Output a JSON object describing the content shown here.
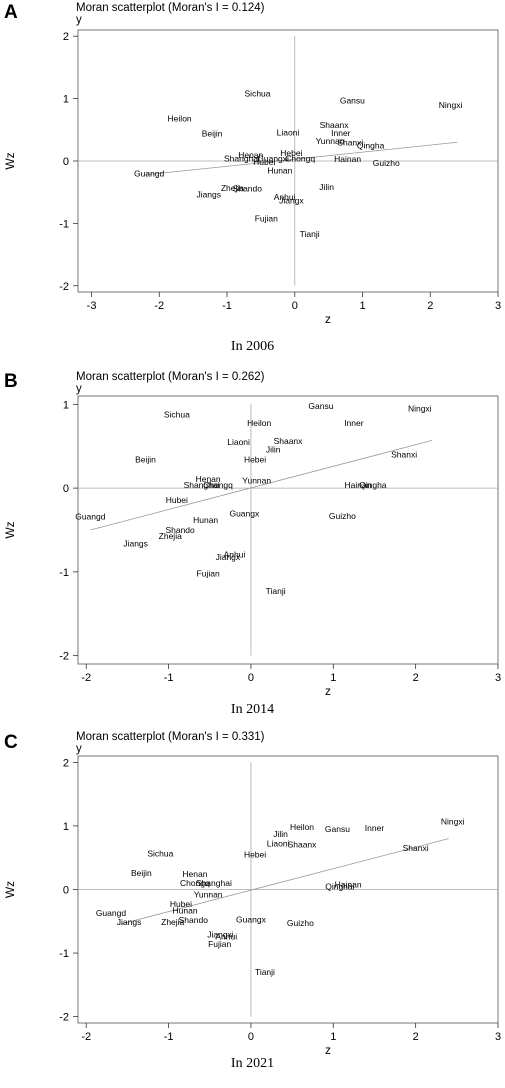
{
  "panels": [
    {
      "letter": "A",
      "title": "Moran scatterplot (Moran's I = 0.124)",
      "title_y": "y",
      "caption": "In 2006"
    },
    {
      "letter": "B",
      "title": "Moran scatterplot (Moran's I = 0.262)",
      "title_y": "y",
      "caption": "In 2014"
    },
    {
      "letter": "C",
      "title": "Moran scatterplot (Moran's I = 0.331)",
      "title_y": "y",
      "caption": "In 2021"
    }
  ],
  "chart_data": [
    {
      "type": "scatter",
      "title": "Moran scatterplot (Moran's I = 0.124)",
      "xlabel": "z",
      "ylabel": "Wz",
      "xlim": [
        -3.2,
        3.0
      ],
      "ylim": [
        -2.1,
        2.1
      ],
      "xticks": [
        -3,
        -2,
        -1,
        0,
        1,
        2,
        3
      ],
      "yticks": [
        -2,
        -1,
        0,
        1,
        2
      ],
      "fit_line": {
        "x": [
          -2.2,
          2.4
        ],
        "y": [
          -0.22,
          0.3
        ]
      },
      "points": [
        {
          "label": "Sichua",
          "x": -0.55,
          "y": 1.08
        },
        {
          "label": "Gansu",
          "x": 0.85,
          "y": 0.97
        },
        {
          "label": "Ningxi",
          "x": 2.3,
          "y": 0.9
        },
        {
          "label": "Heilon",
          "x": -1.7,
          "y": 0.68
        },
        {
          "label": "Shaanx",
          "x": 0.58,
          "y": 0.58
        },
        {
          "label": "Beijin",
          "x": -1.22,
          "y": 0.44
        },
        {
          "label": "Liaoni",
          "x": -0.1,
          "y": 0.46
        },
        {
          "label": "Inner",
          "x": 0.68,
          "y": 0.45
        },
        {
          "label": "Yunnan",
          "x": 0.52,
          "y": 0.32
        },
        {
          "label": "Shanxi",
          "x": 0.82,
          "y": 0.3
        },
        {
          "label": "Qingha",
          "x": 1.12,
          "y": 0.25
        },
        {
          "label": "Hebei",
          "x": -0.05,
          "y": 0.13
        },
        {
          "label": "Henan",
          "x": -0.65,
          "y": 0.1
        },
        {
          "label": "Shanghai",
          "x": -0.78,
          "y": 0.04
        },
        {
          "label": "Guangxi",
          "x": -0.32,
          "y": 0.04
        },
        {
          "label": "Chongq",
          "x": 0.08,
          "y": 0.04
        },
        {
          "label": "Hubei",
          "x": -0.45,
          "y": -0.02
        },
        {
          "label": "Hainan",
          "x": 0.78,
          "y": 0.03
        },
        {
          "label": "Guizho",
          "x": 1.35,
          "y": -0.03
        },
        {
          "label": "Hunan",
          "x": -0.22,
          "y": -0.15
        },
        {
          "label": "Guangd",
          "x": -2.15,
          "y": -0.2
        },
        {
          "label": "Zhejia",
          "x": -0.92,
          "y": -0.43
        },
        {
          "label": "Shando",
          "x": -0.7,
          "y": -0.44
        },
        {
          "label": "Jilin",
          "x": 0.47,
          "y": -0.42
        },
        {
          "label": "Jiangs",
          "x": -1.27,
          "y": -0.54
        },
        {
          "label": "Anhui",
          "x": -0.15,
          "y": -0.58
        },
        {
          "label": "Jiangx",
          "x": -0.05,
          "y": -0.63
        },
        {
          "label": "Fujian",
          "x": -0.42,
          "y": -0.92
        },
        {
          "label": "Tianji",
          "x": 0.22,
          "y": -1.17
        }
      ]
    },
    {
      "type": "scatter",
      "title": "Moran scatterplot (Moran's I = 0.262)",
      "xlabel": "z",
      "ylabel": "Wz",
      "xlim": [
        -2.1,
        3.0
      ],
      "ylim": [
        -2.1,
        1.1
      ],
      "xticks": [
        -2,
        -1,
        0,
        1,
        2,
        3
      ],
      "yticks": [
        -2,
        -1,
        0,
        1
      ],
      "fit_line": {
        "x": [
          -1.95,
          2.2
        ],
        "y": [
          -0.5,
          0.57
        ]
      },
      "points": [
        {
          "label": "Gansu",
          "x": 0.85,
          "y": 0.98
        },
        {
          "label": "Ningxi",
          "x": 2.05,
          "y": 0.95
        },
        {
          "label": "Sichua",
          "x": -0.9,
          "y": 0.88
        },
        {
          "label": "Heilon",
          "x": 0.1,
          "y": 0.78
        },
        {
          "label": "Inner",
          "x": 1.25,
          "y": 0.78
        },
        {
          "label": "Shaanx",
          "x": 0.45,
          "y": 0.56
        },
        {
          "label": "Liaoni",
          "x": -0.15,
          "y": 0.55
        },
        {
          "label": "Jilin",
          "x": 0.27,
          "y": 0.46
        },
        {
          "label": "Shanxi",
          "x": 1.86,
          "y": 0.4
        },
        {
          "label": "Beijin",
          "x": -1.28,
          "y": 0.34
        },
        {
          "label": "Hebei",
          "x": 0.05,
          "y": 0.34
        },
        {
          "label": "Henan",
          "x": -0.52,
          "y": 0.11
        },
        {
          "label": "Yunnan",
          "x": 0.07,
          "y": 0.09
        },
        {
          "label": "Shanghai",
          "x": -0.6,
          "y": 0.04
        },
        {
          "label": "Chongq",
          "x": -0.4,
          "y": 0.04
        },
        {
          "label": "Hainan",
          "x": 1.3,
          "y": 0.04
        },
        {
          "label": "Qingha",
          "x": 1.48,
          "y": 0.04
        },
        {
          "label": "Hubei",
          "x": -0.9,
          "y": -0.14
        },
        {
          "label": "Guangx",
          "x": -0.08,
          "y": -0.3
        },
        {
          "label": "Guizho",
          "x": 1.11,
          "y": -0.33
        },
        {
          "label": "Guangd",
          "x": -1.95,
          "y": -0.34
        },
        {
          "label": "Hunan",
          "x": -0.55,
          "y": -0.38
        },
        {
          "label": "Shando",
          "x": -0.86,
          "y": -0.5
        },
        {
          "label": "Zhejia",
          "x": -0.98,
          "y": -0.57
        },
        {
          "label": "Jiangs",
          "x": -1.4,
          "y": -0.66
        },
        {
          "label": "Anhui",
          "x": -0.2,
          "y": -0.79
        },
        {
          "label": "Jiangx",
          "x": -0.28,
          "y": -0.82
        },
        {
          "label": "Fujian",
          "x": -0.52,
          "y": -1.02
        },
        {
          "label": "Tianji",
          "x": 0.3,
          "y": -1.23
        }
      ]
    },
    {
      "type": "scatter",
      "title": "Moran scatterplot (Moran's I = 0.331)",
      "xlabel": "z",
      "ylabel": "Wz",
      "xlim": [
        -2.1,
        3.0
      ],
      "ylim": [
        -2.1,
        2.1
      ],
      "xticks": [
        -2,
        -1,
        0,
        1,
        2,
        3
      ],
      "yticks": [
        -2,
        -1,
        0,
        1,
        2
      ],
      "fit_line": {
        "x": [
          -1.6,
          2.4
        ],
        "y": [
          -0.55,
          0.8
        ]
      },
      "points": [
        {
          "label": "Ningxi",
          "x": 2.45,
          "y": 1.07
        },
        {
          "label": "Heilon",
          "x": 0.62,
          "y": 0.98
        },
        {
          "label": "Gansu",
          "x": 1.05,
          "y": 0.95
        },
        {
          "label": "Inner",
          "x": 1.5,
          "y": 0.97
        },
        {
          "label": "Jilin",
          "x": 0.36,
          "y": 0.87
        },
        {
          "label": "Shanxi",
          "x": 2.0,
          "y": 0.65
        },
        {
          "label": "Liaoni",
          "x": 0.33,
          "y": 0.72
        },
        {
          "label": "Shaanx",
          "x": 0.62,
          "y": 0.71
        },
        {
          "label": "Sichua",
          "x": -1.1,
          "y": 0.57
        },
        {
          "label": "Hebei",
          "x": 0.05,
          "y": 0.55
        },
        {
          "label": "Beijin",
          "x": -1.33,
          "y": 0.26
        },
        {
          "label": "Henan",
          "x": -0.68,
          "y": 0.24
        },
        {
          "label": "Chongq",
          "x": -0.68,
          "y": 0.1
        },
        {
          "label": "Shanghai",
          "x": -0.45,
          "y": 0.1
        },
        {
          "label": "Qinghai",
          "x": 1.08,
          "y": 0.05
        },
        {
          "label": "Hainan",
          "x": 1.18,
          "y": 0.08
        },
        {
          "label": "Yunnan",
          "x": -0.52,
          "y": -0.08
        },
        {
          "label": "Hubei",
          "x": -0.85,
          "y": -0.23
        },
        {
          "label": "Guangd",
          "x": -1.7,
          "y": -0.37
        },
        {
          "label": "Hunan",
          "x": -0.8,
          "y": -0.33
        },
        {
          "label": "Guangx",
          "x": 0.0,
          "y": -0.47
        },
        {
          "label": "Shando",
          "x": -0.7,
          "y": -0.48
        },
        {
          "label": "Zhejia",
          "x": -0.95,
          "y": -0.51
        },
        {
          "label": "Jiangs",
          "x": -1.48,
          "y": -0.51
        },
        {
          "label": "Guizho",
          "x": 0.6,
          "y": -0.53
        },
        {
          "label": "Jiangxi",
          "x": -0.37,
          "y": -0.71
        },
        {
          "label": "Anhui",
          "x": -0.3,
          "y": -0.74
        },
        {
          "label": "Fujian",
          "x": -0.38,
          "y": -0.86
        },
        {
          "label": "Tianji",
          "x": 0.17,
          "y": -1.3
        }
      ]
    }
  ]
}
